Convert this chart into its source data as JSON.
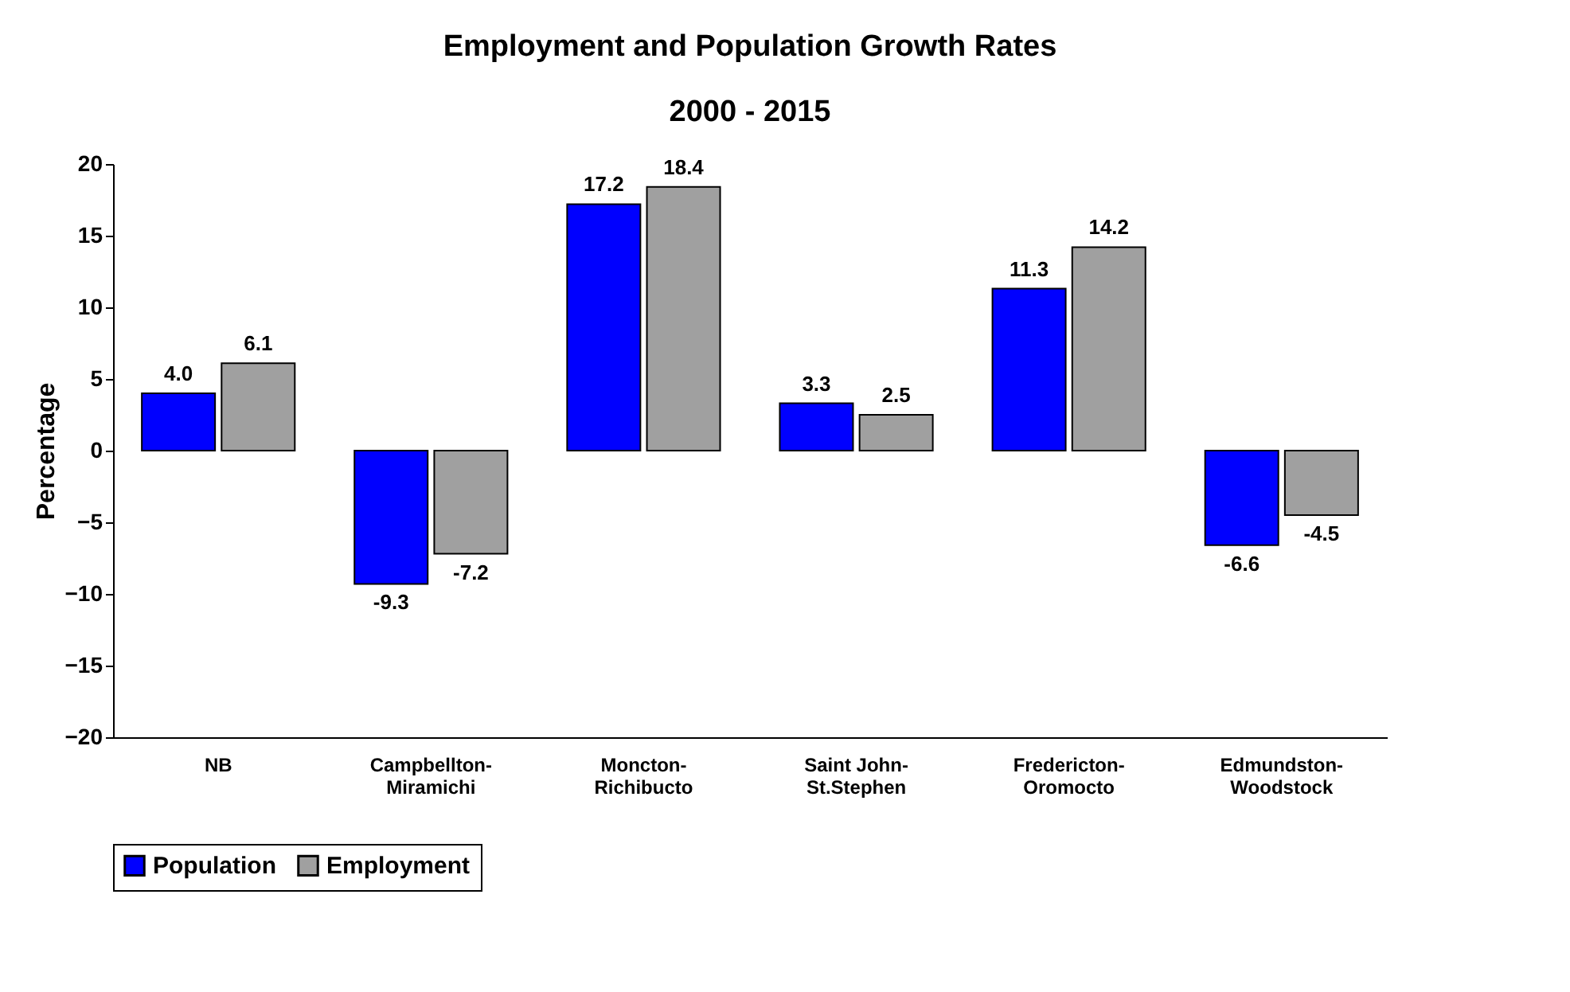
{
  "chart_data": {
    "type": "bar",
    "title": "Employment and Population Growth Rates",
    "subtitle": "2000 - 2015",
    "ylabel": "Percentage",
    "categories": [
      "NB",
      "Campbellton-Miramichi",
      "Moncton-Richibucto",
      "Saint John-St.Stephen",
      "Fredericton-Oromocto",
      "Edmundston-Woodstock"
    ],
    "series": [
      {
        "name": "Population",
        "color": "#0000ff",
        "values": [
          4.0,
          -9.3,
          17.2,
          3.3,
          11.3,
          -6.6
        ],
        "value_labels": [
          "4.0",
          "-9.3",
          "17.2",
          "3.3",
          "11.3",
          "-6.6"
        ]
      },
      {
        "name": "Employment",
        "color": "#a0a0a0",
        "values": [
          6.1,
          -7.2,
          18.4,
          2.5,
          14.2,
          -4.5
        ],
        "value_labels": [
          "6.1",
          "-7.2",
          "18.4",
          "2.5",
          "14.2",
          "-4.5"
        ]
      }
    ],
    "ylim": [
      -20,
      20
    ],
    "yticks": [
      -20,
      -15,
      -10,
      -5,
      0,
      5,
      10,
      15,
      20
    ],
    "grid": false,
    "legend": "bottom"
  }
}
